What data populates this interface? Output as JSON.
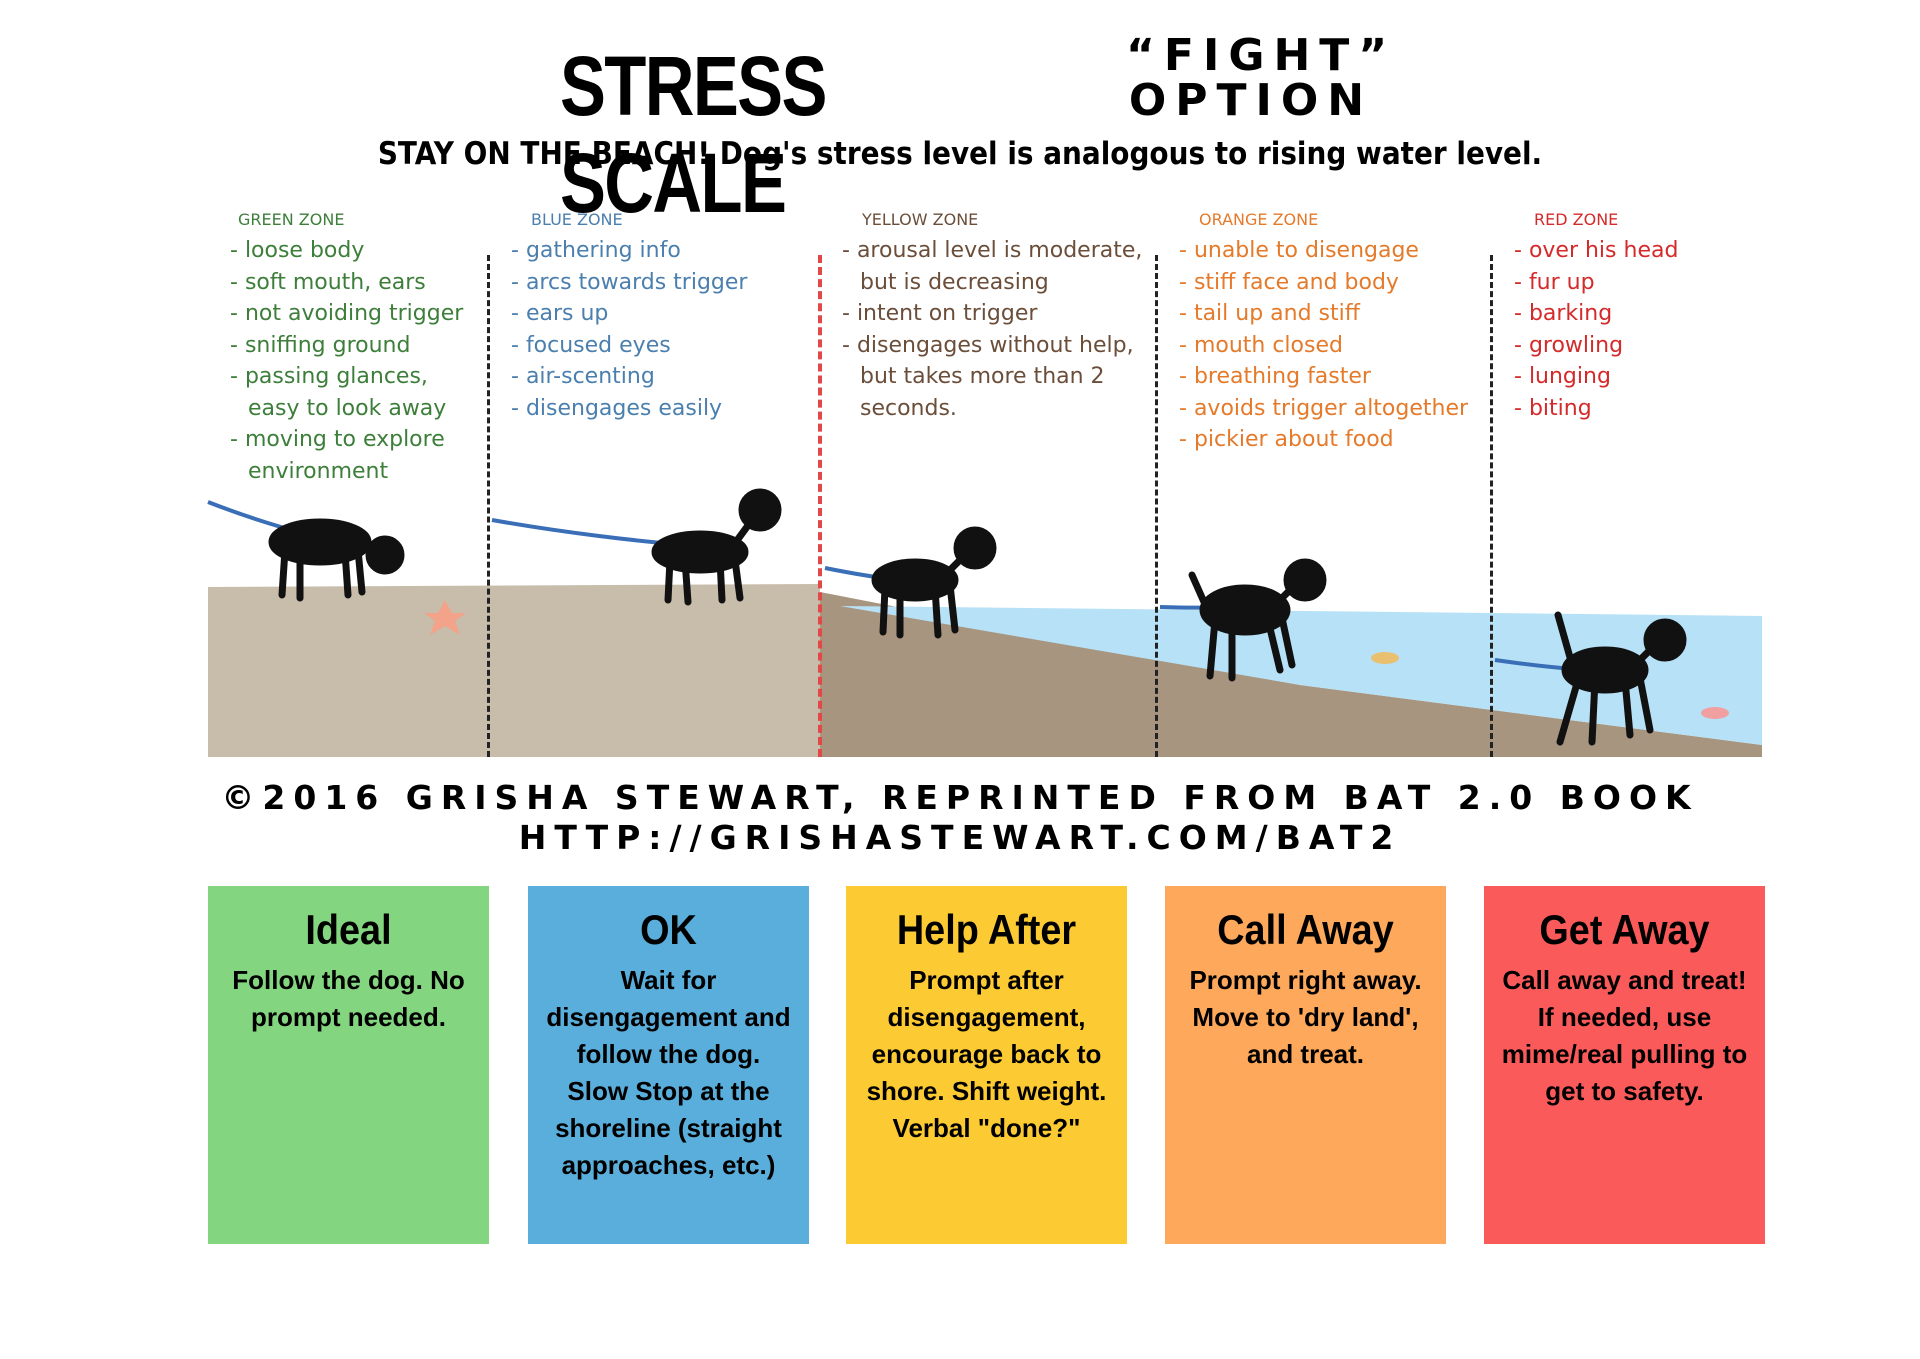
{
  "header": {
    "title": "STRESS SCALE",
    "option_top": "“FIGHT”",
    "option_bottom": "OPTION",
    "subtitle": "STAY ON THE BEACH!  Dog's stress level is analogous to rising water level."
  },
  "zones": [
    {
      "name": "GREEN ZONE",
      "color": "#3d7f3a",
      "items": [
        "loose body",
        "soft mouth, ears",
        "not avoiding trigger",
        "sniffing ground",
        "passing glances, easy to look away",
        "moving to explore environment"
      ]
    },
    {
      "name": "BLUE ZONE",
      "color": "#4a7fae",
      "items": [
        "gathering info",
        "arcs towards trigger",
        "ears up",
        "focused eyes",
        "air-scenting",
        "disengages easily"
      ]
    },
    {
      "name": "YELLOW ZONE",
      "color": "#6b4e3a",
      "items": [
        "arousal level is moderate, but is decreasing",
        "intent on trigger",
        "disengages without help, but takes more than 2 seconds."
      ]
    },
    {
      "name": "ORANGE ZONE",
      "color": "#e47a2a",
      "items": [
        "unable to disengage",
        "stiff face and body",
        "tail up and stiff",
        "mouth closed",
        "breathing faster",
        "avoids trigger altogether",
        "pickier about food"
      ]
    },
    {
      "name": "RED ZONE",
      "color": "#d42a2a",
      "items": [
        "over his head",
        "fur up",
        "barking",
        "growling",
        "lunging",
        "biting"
      ]
    }
  ],
  "credit": {
    "line1": "©2016  GRISHA STEWART, REPRINTED FROM BAT 2.0 BOOK",
    "line2": "HTTP://GRISHASTEWART.COM/BAT2"
  },
  "cards": [
    {
      "title": "Ideal",
      "color": "#84d57f",
      "body": [
        "Follow the dog. No prompt needed."
      ]
    },
    {
      "title": "OK",
      "color": "#5aaedc",
      "body": [
        "Wait for disengagement and follow the dog. Slow Stop at the shoreline (straight approaches, etc.)"
      ]
    },
    {
      "title": "Help After",
      "color": "#fcca32",
      "body": [
        "Prompt after disengagement, encourage back to shore. Shift weight.",
        "Verbal \"done?\""
      ]
    },
    {
      "title": "Call Away",
      "color": "#fda85a",
      "body": [
        "Prompt right away. Move to 'dry land', and treat."
      ]
    },
    {
      "title": "Get Away",
      "color": "#fb5a5a",
      "body": [
        "Call away and treat! If needed, use mime/real pulling to get to safety."
      ]
    }
  ]
}
